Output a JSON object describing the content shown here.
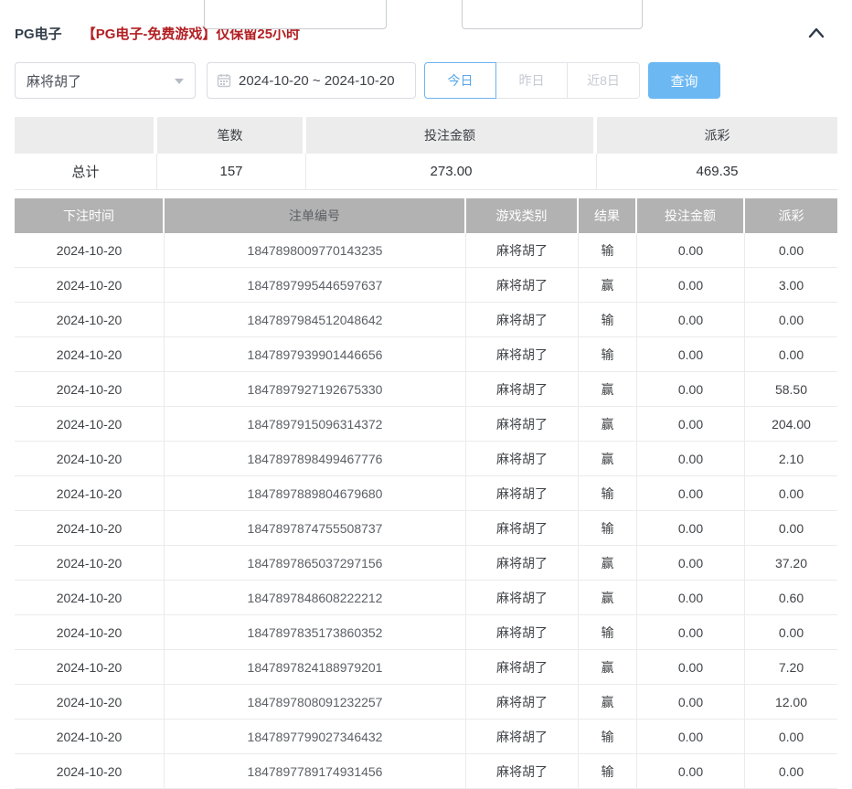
{
  "colors": {
    "accent_blue": "#6cb8f3",
    "notice_red": "#b32024",
    "table_header_bg": "#b2b2b2"
  },
  "header": {
    "title": "PG电子",
    "notice": "【PG电子-免费游戏】仅保留25小时"
  },
  "filters": {
    "game_select": {
      "value": "麻将胡了"
    },
    "date_range": {
      "value": "2024-10-20 ~ 2024-10-20"
    },
    "quick_ranges": [
      {
        "label": "今日",
        "active": true
      },
      {
        "label": "昨日",
        "active": false
      },
      {
        "label": "近8日",
        "active": false
      }
    ],
    "query_label": "查询"
  },
  "summary": {
    "columns": [
      "",
      "笔数",
      "投注金额",
      "派彩"
    ],
    "row_label": "总计",
    "values": [
      "157",
      "273.00",
      "469.35"
    ]
  },
  "table": {
    "columns": [
      "下注时间",
      "注单编号",
      "游戏类别",
      "结果",
      "投注金额",
      "派彩"
    ],
    "column_names": [
      "bet-time",
      "bet-id",
      "game-type",
      "result",
      "bet-amount",
      "payout"
    ],
    "rows": [
      [
        "2024-10-20",
        "1847898009770143235",
        "麻将胡了",
        "输",
        "0.00",
        "0.00"
      ],
      [
        "2024-10-20",
        "1847897995446597637",
        "麻将胡了",
        "赢",
        "0.00",
        "3.00"
      ],
      [
        "2024-10-20",
        "1847897984512048642",
        "麻将胡了",
        "输",
        "0.00",
        "0.00"
      ],
      [
        "2024-10-20",
        "1847897939901446656",
        "麻将胡了",
        "输",
        "0.00",
        "0.00"
      ],
      [
        "2024-10-20",
        "1847897927192675330",
        "麻将胡了",
        "赢",
        "0.00",
        "58.50"
      ],
      [
        "2024-10-20",
        "1847897915096314372",
        "麻将胡了",
        "赢",
        "0.00",
        "204.00"
      ],
      [
        "2024-10-20",
        "1847897898499467776",
        "麻将胡了",
        "赢",
        "0.00",
        "2.10"
      ],
      [
        "2024-10-20",
        "1847897889804679680",
        "麻将胡了",
        "输",
        "0.00",
        "0.00"
      ],
      [
        "2024-10-20",
        "1847897874755508737",
        "麻将胡了",
        "输",
        "0.00",
        "0.00"
      ],
      [
        "2024-10-20",
        "1847897865037297156",
        "麻将胡了",
        "赢",
        "0.00",
        "37.20"
      ],
      [
        "2024-10-20",
        "1847897848608222212",
        "麻将胡了",
        "赢",
        "0.00",
        "0.60"
      ],
      [
        "2024-10-20",
        "1847897835173860352",
        "麻将胡了",
        "输",
        "0.00",
        "0.00"
      ],
      [
        "2024-10-20",
        "1847897824188979201",
        "麻将胡了",
        "赢",
        "0.00",
        "7.20"
      ],
      [
        "2024-10-20",
        "1847897808091232257",
        "麻将胡了",
        "赢",
        "0.00",
        "12.00"
      ],
      [
        "2024-10-20",
        "1847897799027346432",
        "麻将胡了",
        "输",
        "0.00",
        "0.00"
      ],
      [
        "2024-10-20",
        "1847897789174931456",
        "麻将胡了",
        "输",
        "0.00",
        "0.00"
      ]
    ]
  }
}
